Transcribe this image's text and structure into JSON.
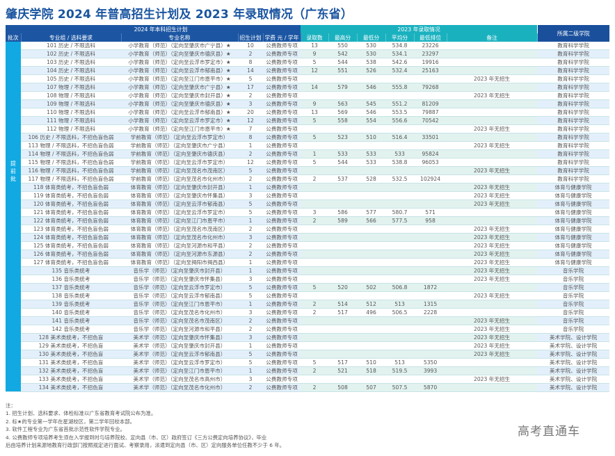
{
  "title": "肇庆学院 2024 年普高招生计划及 2023 年录取情况（广东省）",
  "header": {
    "plan_group": "2024 年本科招生计划",
    "admission_group": "2023 年录取情况",
    "college": "所属二级学院",
    "columns": {
      "batch": "批次",
      "group": "专业组 / 选科要求",
      "major": "专业名称",
      "plan": "招生计划",
      "fee": "学费 元 / 学年",
      "admitted": "录取数",
      "max": "最高分",
      "min": "最低分",
      "avg": "平均分",
      "min_rank": "最低排位",
      "note": "备注"
    }
  },
  "batch_label": [
    "提",
    "前",
    "批"
  ],
  "rows": [
    {
      "group": "101 历史 / 不限选科",
      "major": "小学教育（师范）（定向至肇庆市广宁县）★",
      "plan": "10",
      "fee": "公费教师专项",
      "admitted": "13",
      "max": "550",
      "min": "530",
      "avg": "534.8",
      "min_rank": "23226",
      "note": "",
      "college": "教育科学学院"
    },
    {
      "group": "102 历史 / 不限选科",
      "major": "小学教育（师范）（定向至肇庆市德庆县）★",
      "plan": "2",
      "fee": "公费教师专项",
      "admitted": "9",
      "max": "542",
      "min": "530",
      "avg": "534.1",
      "min_rank": "23297",
      "note": "",
      "college": "教育科学学院"
    },
    {
      "group": "103 历史 / 不限选科",
      "major": "小学教育（师范）（定向至云浮市罗定市）★",
      "plan": "8",
      "fee": "公费教师专项",
      "admitted": "5",
      "max": "544",
      "min": "538",
      "avg": "542.6",
      "min_rank": "19916",
      "note": "",
      "college": "教育科学学院"
    },
    {
      "group": "104 历史 / 不限选科",
      "major": "小学教育（师范）（定向至云浮市郁南县）★",
      "plan": "14",
      "fee": "公费教师专项",
      "admitted": "12",
      "max": "551",
      "min": "526",
      "avg": "532.4",
      "min_rank": "25163",
      "note": "",
      "college": "教育科学学院"
    },
    {
      "group": "105 历史 / 不限选科",
      "major": "小学教育（师范）（定向至江门市恩平市）★",
      "plan": "5",
      "fee": "公费教师专项",
      "admitted": "",
      "max": "",
      "min": "",
      "avg": "",
      "min_rank": "",
      "note": "2023 年无招生",
      "college": "教育科学学院"
    },
    {
      "group": "107 物理 / 不限选科",
      "major": "小学教育（师范）（定向至肇庆市广宁县）★",
      "plan": "17",
      "fee": "公费教师专项",
      "admitted": "14",
      "max": "579",
      "min": "546",
      "avg": "555.8",
      "min_rank": "79268",
      "note": "",
      "college": "教育科学学院"
    },
    {
      "group": "108 物理 / 不限选科",
      "major": "小学教育（师范）（定向至肇庆市封开县）★",
      "plan": "2",
      "fee": "公费教师专项",
      "admitted": "",
      "max": "",
      "min": "",
      "avg": "",
      "min_rank": "",
      "note": "2023 年无招生",
      "college": "教育科学学院"
    },
    {
      "group": "109 物理 / 不限选科",
      "major": "小学教育（师范）（定向至肇庆市德庆县）★",
      "plan": "3",
      "fee": "公费教师专项",
      "admitted": "9",
      "max": "563",
      "min": "545",
      "avg": "551.2",
      "min_rank": "81209",
      "note": "",
      "college": "教育科学学院"
    },
    {
      "group": "110 物理 / 不限选科",
      "major": "小学教育（师范）（定向至云浮市郁南县）★",
      "plan": "20",
      "fee": "公费教师专项",
      "admitted": "13",
      "max": "569",
      "min": "546",
      "avg": "553.5",
      "min_rank": "79887",
      "note": "",
      "college": "教育科学学院"
    },
    {
      "group": "111 物理 / 不限选科",
      "major": "小学教育（师范）（定向至云浮市罗定市）★",
      "plan": "12",
      "fee": "公费教师专项",
      "admitted": "5",
      "max": "558",
      "min": "554",
      "avg": "556.6",
      "min_rank": "70542",
      "note": "",
      "college": "教育科学学院"
    },
    {
      "group": "112 物理 / 不限选科",
      "major": "小学教育（师范）（定向至江门市恩平市）★",
      "plan": "7",
      "fee": "公费教师专项",
      "admitted": "",
      "max": "",
      "min": "",
      "avg": "",
      "min_rank": "",
      "note": "2023 年无招生",
      "college": "教育科学学院"
    },
    {
      "group": "106 历史 / 不限选科，不招色盲色弱",
      "major": "学前教育（师范）（定向至云浮市罗定市）",
      "plan": "8",
      "fee": "公费教师专项",
      "admitted": "5",
      "max": "523",
      "min": "510",
      "avg": "516.4",
      "min_rank": "33501",
      "note": "",
      "college": "教育科学学院"
    },
    {
      "group": "113 物理 / 不限选科，不招色盲色弱",
      "major": "学前教育（师范）（定向至肇庆市广宁县）",
      "plan": "1",
      "fee": "公费教师专项",
      "admitted": "",
      "max": "",
      "min": "",
      "avg": "",
      "min_rank": "",
      "note": "2023 年无招生",
      "college": "教育科学学院"
    },
    {
      "group": "114 物理 / 不限选科，不招色盲色弱",
      "major": "学前教育（师范）（定向至肇庆市德庆县）",
      "plan": "2",
      "fee": "公费教师专项",
      "admitted": "1",
      "max": "533",
      "min": "533",
      "avg": "533",
      "min_rank": "95824",
      "note": "",
      "college": "教育科学学院"
    },
    {
      "group": "115 物理 / 不限选科，不招色盲色弱",
      "major": "学前教育（师范）（定向至云浮市罗定市）",
      "plan": "12",
      "fee": "公费教师专项",
      "admitted": "5",
      "max": "544",
      "min": "533",
      "avg": "538.8",
      "min_rank": "96053",
      "note": "",
      "college": "教育科学学院"
    },
    {
      "group": "116 物理 / 不限选科，不招色盲色弱",
      "major": "学前教育（师范）（定向至茂名市茂南区）",
      "plan": "5",
      "fee": "公费教师专项",
      "admitted": "",
      "max": "",
      "min": "",
      "avg": "",
      "min_rank": "",
      "note": "2023 年无招生",
      "college": "教育科学学院"
    },
    {
      "group": "117 物理 / 不限选科，不招色盲色弱",
      "major": "学前教育（师范）（定向至茂名市化州市）",
      "plan": "2",
      "fee": "公费教师专项",
      "admitted": "2",
      "max": "537",
      "min": "528",
      "avg": "532.5",
      "min_rank": "102924",
      "note": "",
      "college": "教育科学学院"
    },
    {
      "group": "118 体育类统考，不招色盲色弱",
      "major": "体育教育（师范）（定向至肇庆市封开县）",
      "plan": "1",
      "fee": "公费教师专项",
      "admitted": "",
      "max": "",
      "min": "",
      "avg": "",
      "min_rank": "",
      "note": "2023 年无招生",
      "college": "体育与健康学院"
    },
    {
      "group": "119 体育类统考，不招色盲色弱",
      "major": "体育教育（师范）（定向至肇庆市怀集县）",
      "plan": "3",
      "fee": "公费教师专项",
      "admitted": "",
      "max": "",
      "min": "",
      "avg": "",
      "min_rank": "",
      "note": "2023 年无招生",
      "college": "体育与健康学院"
    },
    {
      "group": "120 体育类统考，不招色盲色弱",
      "major": "体育教育（师范）（定向至云浮市郁南县）",
      "plan": "5",
      "fee": "公费教师专项",
      "admitted": "",
      "max": "",
      "min": "",
      "avg": "",
      "min_rank": "",
      "note": "2023 年无招生",
      "college": "体育与健康学院"
    },
    {
      "group": "121 体育类统考，不招色盲色弱",
      "major": "体育教育（师范）（定向至云浮市罗定市）",
      "plan": "5",
      "fee": "公费教师专项",
      "admitted": "3",
      "max": "586",
      "min": "577",
      "avg": "580.7",
      "min_rank": "571",
      "note": "",
      "college": "体育与健康学院"
    },
    {
      "group": "122 体育类统考，不招色盲色弱",
      "major": "体育教育（师范）（定向至江门市恩平市）",
      "plan": "1",
      "fee": "公费教师专项",
      "admitted": "2",
      "max": "589",
      "min": "566",
      "avg": "577.5",
      "min_rank": "958",
      "note": "",
      "college": "体育与健康学院"
    },
    {
      "group": "123 体育类统考，不招色盲色弱",
      "major": "体育教育（师范）（定向至茂名市茂南区）",
      "plan": "2",
      "fee": "公费教师专项",
      "admitted": "",
      "max": "",
      "min": "",
      "avg": "",
      "min_rank": "",
      "note": "2023 年无招生",
      "college": "体育与健康学院"
    },
    {
      "group": "124 体育类统考，不招色盲色弱",
      "major": "体育教育（师范）（定向至茂名市化州市）",
      "plan": "3",
      "fee": "公费教师专项",
      "admitted": "",
      "max": "",
      "min": "",
      "avg": "",
      "min_rank": "",
      "note": "2023 年无招生",
      "college": "体育与健康学院"
    },
    {
      "group": "125 体育类统考，不招色盲色弱",
      "major": "体育教育（师范）（定向至河源市和平县）",
      "plan": "2",
      "fee": "公费教师专项",
      "admitted": "",
      "max": "",
      "min": "",
      "avg": "",
      "min_rank": "",
      "note": "2023 年无招生",
      "college": "体育与健康学院"
    },
    {
      "group": "126 体育类统考，不招色盲色弱",
      "major": "体育教育（师范）（定向至河源市东源县）",
      "plan": "2",
      "fee": "公费教师专项",
      "admitted": "",
      "max": "",
      "min": "",
      "avg": "",
      "min_rank": "",
      "note": "2023 年无招生",
      "college": "体育与健康学院"
    },
    {
      "group": "127 体育类统考，不招色盲色弱",
      "major": "体育教育（师范）（定向至揭阳市揭西县）",
      "plan": "1",
      "fee": "公费教师专项",
      "admitted": "",
      "max": "",
      "min": "",
      "avg": "",
      "min_rank": "",
      "note": "2023 年无招生",
      "college": "体育与健康学院"
    },
    {
      "group": "135 音乐类统考",
      "major": "音乐学（师范）（定向至肇庆市封开县）",
      "plan": "1",
      "fee": "公费教师专项",
      "admitted": "",
      "max": "",
      "min": "",
      "avg": "",
      "min_rank": "",
      "note": "2023 年无招生",
      "college": "音乐学院"
    },
    {
      "group": "136 音乐类统考",
      "major": "音乐学（师范）（定向至肇庆市怀集县）",
      "plan": "3",
      "fee": "公费教师专项",
      "admitted": "",
      "max": "",
      "min": "",
      "avg": "",
      "min_rank": "",
      "note": "2023 年无招生",
      "college": "音乐学院"
    },
    {
      "group": "137 音乐类统考",
      "major": "音乐学（师范）（定向至云浮市罗定市）",
      "plan": "5",
      "fee": "公费教师专项",
      "admitted": "5",
      "max": "520",
      "min": "502",
      "avg": "506.8",
      "min_rank": "1872",
      "note": "",
      "college": "音乐学院"
    },
    {
      "group": "138 音乐类统考",
      "major": "音乐学（师范）（定向至云浮市郁南县）",
      "plan": "5",
      "fee": "公费教师专项",
      "admitted": "",
      "max": "",
      "min": "",
      "avg": "",
      "min_rank": "",
      "note": "2023 年无招生",
      "college": "音乐学院"
    },
    {
      "group": "139 音乐类统考",
      "major": "音乐学（师范）（定向至江门市恩平市）",
      "plan": "1",
      "fee": "公费教师专项",
      "admitted": "2",
      "max": "514",
      "min": "512",
      "avg": "513",
      "min_rank": "1315",
      "note": "",
      "college": "音乐学院"
    },
    {
      "group": "140 音乐类统考",
      "major": "音乐学（师范）（定向至茂名市化州市）",
      "plan": "3",
      "fee": "公费教师专项",
      "admitted": "2",
      "max": "517",
      "min": "496",
      "avg": "506.5",
      "min_rank": "2228",
      "note": "",
      "college": "音乐学院"
    },
    {
      "group": "141 音乐类统考",
      "major": "音乐学（师范）（定向至茂名市茂南区）",
      "plan": "2",
      "fee": "公费教师专项",
      "admitted": "",
      "max": "",
      "min": "",
      "avg": "",
      "min_rank": "",
      "note": "2023 年无招生",
      "college": "音乐学院"
    },
    {
      "group": "142 音乐类统考",
      "major": "音乐学（师范）（定向至河源市和平县）",
      "plan": "2",
      "fee": "公费教师专项",
      "admitted": "",
      "max": "",
      "min": "",
      "avg": "",
      "min_rank": "",
      "note": "2023 年无招生",
      "college": "音乐学院"
    },
    {
      "group": "128 美术类统考，不招色盲",
      "major": "美术学（师范）（定向至肇庆市怀集县）",
      "plan": "3",
      "fee": "公费教师专项",
      "admitted": "",
      "max": "",
      "min": "",
      "avg": "",
      "min_rank": "",
      "note": "2023 年无招生",
      "college": "美术学院、设计学院"
    },
    {
      "group": "129 美术类统考，不招色盲",
      "major": "美术学（师范）（定向至肇庆市封开县）",
      "plan": "1",
      "fee": "公费教师专项",
      "admitted": "",
      "max": "",
      "min": "",
      "avg": "",
      "min_rank": "",
      "note": "2023 年无招生",
      "college": "美术学院、设计学院"
    },
    {
      "group": "130 美术类统考，不招色盲",
      "major": "美术学（师范）（定向至云浮市郁南县）",
      "plan": "5",
      "fee": "公费教师专项",
      "admitted": "",
      "max": "",
      "min": "",
      "avg": "",
      "min_rank": "",
      "note": "2023 年无招生",
      "college": "美术学院、设计学院"
    },
    {
      "group": "131 美术类统考，不招色盲",
      "major": "美术学（师范）（定向至云浮市罗定市）",
      "plan": "5",
      "fee": "公费教师专项",
      "admitted": "5",
      "max": "517",
      "min": "510",
      "avg": "513",
      "min_rank": "5350",
      "note": "",
      "college": "美术学院、设计学院"
    },
    {
      "group": "132 美术类统考，不招色盲",
      "major": "美术学（师范）（定向至江门市恩平市）",
      "plan": "1",
      "fee": "公费教师专项",
      "admitted": "2",
      "max": "521",
      "min": "518",
      "avg": "519.5",
      "min_rank": "3993",
      "note": "",
      "college": "美术学院、设计学院"
    },
    {
      "group": "133 美术类统考，不招色盲",
      "major": "美术学（师范）（定向至茂名市高州市）",
      "plan": "3",
      "fee": "公费教师专项",
      "admitted": "",
      "max": "",
      "min": "",
      "avg": "",
      "min_rank": "",
      "note": "2023 年无招生",
      "college": "美术学院、设计学院"
    },
    {
      "group": "134 美术类统考，不招色盲",
      "major": "美术学（师范）（定向至茂名市化州市）",
      "plan": "2",
      "fee": "公费教师专项",
      "admitted": "2",
      "max": "508",
      "min": "507",
      "avg": "507.5",
      "min_rank": "5870",
      "note": "",
      "college": "美术学院、设计学院"
    }
  ],
  "notes": {
    "heading": "注：",
    "items": [
      "1. 招生计划、选科要求、体检标准以广东省教育考试院公布为准。",
      "2. 标★的专业第一学年在星湖校区，第二学年回校本部。",
      "3. 软件工程专业为广东省首批示范性软件学院专业。",
      "4. 公费教师专项培养考生须在入学报到时与培养院校、定向县（市、区）政府签订《三方公费定向培养协议》，毕业",
      "后由培养计划来源地教育行政部门按照规定进行面试、考察录用，派遣到定向县（市、区）定向服务单位任教不少于 6 年。"
    ]
  },
  "watermark": "高考直通车",
  "colors": {
    "title": "#1a55a0",
    "plan_header": "#1c56a3",
    "admission_header": "#1ab1bf",
    "college_header": "#1a4f9c",
    "batch_cell": "#12a9e2",
    "alt_row_plan": "#e3f0fb",
    "alt_row_admission": "#e2f2ef"
  }
}
